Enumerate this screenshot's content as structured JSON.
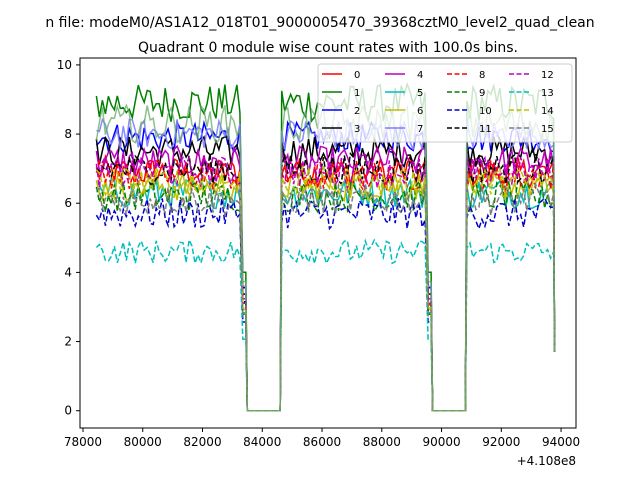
{
  "figure": {
    "suptitle": "n file: modeM0/AS1A12_018T01_9000005470_39368cztM0_level2_quad_clean",
    "offset_label": "+4.108e8"
  },
  "chart_data": {
    "type": "line",
    "title": "Quadrant 0 module wise count rates with 100.0s bins.",
    "xlabel": "",
    "ylabel": "",
    "x_offset": 410800000,
    "xlim": [
      77900,
      94500
    ],
    "ylim": [
      -0.5,
      10.2
    ],
    "xticks": [
      78000,
      80000,
      82000,
      84000,
      86000,
      88000,
      90000,
      92000,
      94000
    ],
    "xtick_labels": [
      "78000",
      "80000",
      "82000",
      "84000",
      "86000",
      "88000",
      "90000",
      "92000",
      "94000"
    ],
    "yticks": [
      0,
      2,
      4,
      6,
      8,
      10
    ],
    "ytick_labels": [
      "0",
      "2",
      "4",
      "6",
      "8",
      "10"
    ],
    "grid": false,
    "legend": {
      "location": "upper right",
      "columns": 4
    },
    "segments": [
      {
        "start": 78450,
        "end": 83450
      },
      {
        "start": 84650,
        "end": 89650
      },
      {
        "start": 90850,
        "end": 93750
      }
    ],
    "gap_value": 0,
    "series": [
      {
        "name": "0",
        "color": "#ff0000",
        "style": "solid",
        "level": 6.9
      },
      {
        "name": "1",
        "color": "#008000",
        "style": "solid",
        "level": 8.9
      },
      {
        "name": "2",
        "color": "#0000ff",
        "style": "solid",
        "level": 7.9
      },
      {
        "name": "3",
        "color": "#000000",
        "style": "solid",
        "level": 7.5
      },
      {
        "name": "4",
        "color": "#bf00bf",
        "style": "solid",
        "level": 7.2
      },
      {
        "name": "5",
        "color": "#00bfbf",
        "style": "solid",
        "level": 6.3
      },
      {
        "name": "6",
        "color": "#bfbf00",
        "style": "solid",
        "level": 6.5
      },
      {
        "name": "7",
        "color": "#7f7fff",
        "style": "solid",
        "level": 8.0,
        "alpha": 0.9
      },
      {
        "name": "8",
        "color": "#ff0000",
        "style": "dashed",
        "level": 6.8
      },
      {
        "name": "9",
        "color": "#008000",
        "style": "dashed",
        "level": 6.2
      },
      {
        "name": "10",
        "color": "#0000cc",
        "style": "dashed",
        "level": 5.7
      },
      {
        "name": "11",
        "color": "#000000",
        "style": "dashed",
        "level": 7.0
      },
      {
        "name": "12",
        "color": "#bf00bf",
        "style": "dashed",
        "level": 6.9
      },
      {
        "name": "13",
        "color": "#00bfbf",
        "style": "dashed",
        "level": 4.6
      },
      {
        "name": "14",
        "color": "#bfbf00",
        "style": "dashed",
        "level": 6.6
      },
      {
        "name": "15",
        "color": "#808080",
        "style": "dashed",
        "level": 6.1
      },
      {
        "name": "",
        "color": "#66aa66",
        "style": "solid",
        "level": 8.3,
        "alpha": 0.75,
        "note_range": "upper-right extra curve"
      }
    ]
  }
}
